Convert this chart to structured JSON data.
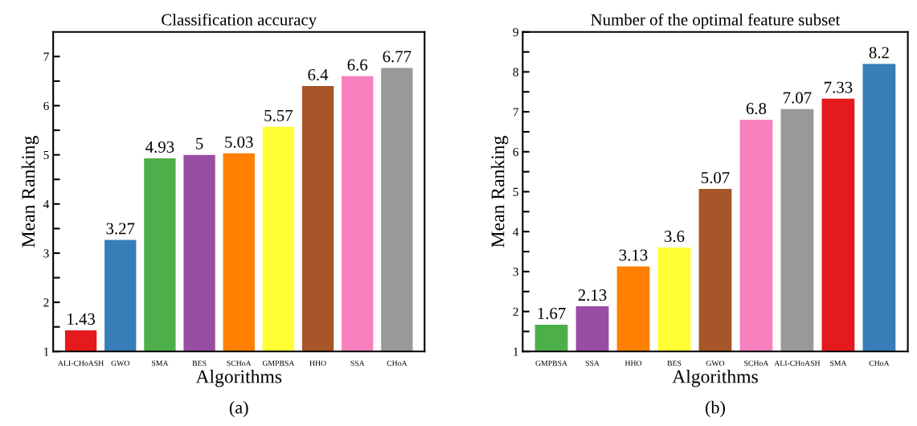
{
  "chart_data": [
    {
      "type": "bar",
      "title": "Classification accuracy",
      "xlabel": "Algorithms",
      "ylabel": "Mean Ranking",
      "annotations": [
        "(a)"
      ],
      "categories": [
        "ALI-CHoASH",
        "GWO",
        "SMA",
        "BES",
        "SCHoA",
        "GMPBSA",
        "HHO",
        "SSA",
        "CHoA"
      ],
      "values": [
        1.43,
        3.27,
        4.93,
        5,
        5.03,
        5.57,
        6.4,
        6.6,
        6.77
      ],
      "colors": [
        "#e41a1c",
        "#377eb8",
        "#4daf4a",
        "#984ea3",
        "#ff7f00",
        "#ffff33",
        "#a65628",
        "#f781bf",
        "#999999"
      ],
      "ylim": [
        1,
        7.5
      ],
      "yticks": [
        1,
        {
          "value": 1.5,
          "label": null
        },
        2,
        {
          "value": 2.5,
          "label": null
        },
        3,
        {
          "value": 3.5,
          "label": null
        },
        4,
        {
          "value": 4.5,
          "label": null
        },
        5,
        {
          "value": 5.5,
          "label": null
        },
        6,
        {
          "value": 6.5,
          "label": null
        },
        7
      ],
      "data_labels": true,
      "grid": false,
      "legend": false
    },
    {
      "type": "bar",
      "title": "Number of the optimal feature subset",
      "xlabel": "Algorithms",
      "ylabel": "Mean Ranking",
      "annotations": [
        "(b)"
      ],
      "categories": [
        "GMPBSA",
        "SSA",
        "HHO",
        "BES",
        "GWO",
        "SCHoA",
        "ALI-CHoASH",
        "SMA",
        "CHoA"
      ],
      "values": [
        1.67,
        2.13,
        3.13,
        3.6,
        5.07,
        6.8,
        7.07,
        7.33,
        8.2
      ],
      "colors": [
        "#4daf4a",
        "#984ea3",
        "#ff7f00",
        "#ffff33",
        "#a65628",
        "#f781bf",
        "#999999",
        "#e41a1c",
        "#377eb8"
      ],
      "ylim": [
        1,
        9
      ],
      "yticks": [
        1,
        {
          "value": 1.5,
          "label": null
        },
        2,
        {
          "value": 2.5,
          "label": null
        },
        3,
        {
          "value": 3.5,
          "label": null
        },
        4,
        {
          "value": 4.5,
          "label": null
        },
        5,
        {
          "value": 5.5,
          "label": null
        },
        6,
        {
          "value": 6.5,
          "label": null
        },
        7,
        {
          "value": 7.5,
          "label": null
        },
        8,
        {
          "value": 8.5,
          "label": null
        },
        9
      ],
      "data_labels": true,
      "grid": false,
      "legend": false
    }
  ]
}
